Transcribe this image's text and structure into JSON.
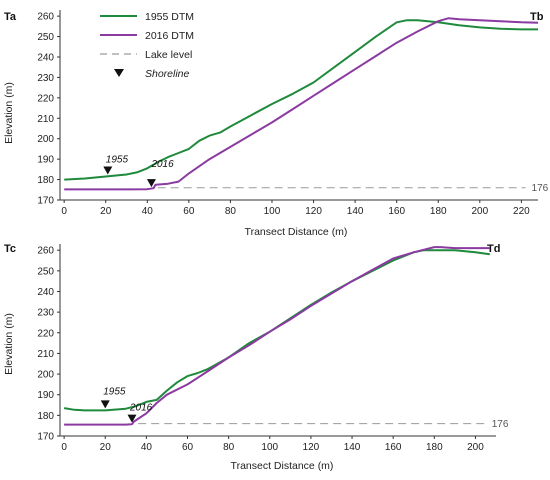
{
  "legend": {
    "items": [
      {
        "label": "1955 DTM",
        "kind": "line",
        "color": "#1f8a3c"
      },
      {
        "label": "2016 DTM",
        "kind": "line",
        "color": "#8b3aa1"
      },
      {
        "label": "Lake level",
        "kind": "dash",
        "color": "#9a9a9a"
      },
      {
        "label": "Shoreline",
        "kind": "marker",
        "color": "#111111"
      }
    ]
  },
  "chart_data": [
    {
      "type": "line",
      "corner_left": "Ta",
      "corner_right": "Tb",
      "xlabel": "Transect Distance (m)",
      "ylabel": "Elevation (m)",
      "xlim": [
        -2,
        228
      ],
      "ylim": [
        170,
        263
      ],
      "xticks": [
        0,
        20,
        40,
        60,
        80,
        100,
        120,
        140,
        160,
        180,
        200,
        220
      ],
      "yticks": [
        170,
        180,
        190,
        200,
        210,
        220,
        230,
        240,
        250,
        260
      ],
      "grid": false,
      "lake_level": {
        "value": 176,
        "label": "176",
        "x_from": 45,
        "x_to": 222
      },
      "series": [
        {
          "name": "1955 DTM",
          "color": "#1f8a3c",
          "x": [
            0,
            10,
            20,
            30,
            35,
            40,
            45,
            50,
            55,
            60,
            65,
            70,
            75,
            80,
            90,
            100,
            110,
            120,
            130,
            140,
            150,
            160,
            165,
            170,
            175,
            180,
            190,
            200,
            210,
            220,
            228
          ],
          "y": [
            180,
            180.5,
            181.5,
            182.5,
            183.5,
            185.5,
            188.5,
            191,
            193,
            195,
            199,
            201.5,
            203,
            206,
            211.5,
            217,
            222,
            227.5,
            235,
            242.5,
            250,
            257,
            258,
            258,
            257.5,
            257,
            255.5,
            254.5,
            253.8,
            253.5,
            253.5
          ]
        },
        {
          "name": "2016 DTM",
          "color": "#8b3aa1",
          "x": [
            0,
            10,
            20,
            30,
            40,
            43,
            44,
            50,
            55,
            60,
            70,
            80,
            90,
            100,
            110,
            120,
            130,
            140,
            150,
            160,
            170,
            180,
            185,
            190,
            200,
            210,
            220,
            228
          ],
          "y": [
            175.2,
            175.2,
            175.2,
            175.2,
            175.3,
            175.8,
            177.5,
            178,
            179,
            183,
            190,
            196,
            202,
            208,
            214.5,
            221,
            227.5,
            234,
            240.5,
            247,
            252.5,
            257.5,
            259,
            258.5,
            258,
            257.5,
            257,
            256.8
          ]
        }
      ],
      "shorelines": [
        {
          "label": "1955",
          "x": 21,
          "y": 181.5,
          "series": "1955 DTM"
        },
        {
          "label": "2016",
          "x": 42,
          "y": 175.3,
          "series": "2016 DTM"
        }
      ]
    },
    {
      "type": "line",
      "corner_left": "Tc",
      "corner_right": "Td",
      "xlabel": "Transect Distance (m)",
      "ylabel": "Elevation (m)",
      "xlim": [
        -2,
        210
      ],
      "ylim": [
        170,
        263
      ],
      "xticks": [
        0,
        20,
        40,
        60,
        80,
        100,
        120,
        140,
        160,
        180,
        200
      ],
      "yticks": [
        170,
        180,
        190,
        200,
        210,
        220,
        230,
        240,
        250,
        260
      ],
      "grid": false,
      "lake_level": {
        "value": 176,
        "label": "176",
        "x_from": 36,
        "x_to": 205
      },
      "series": [
        {
          "name": "1955 DTM",
          "color": "#1f8a3c",
          "x": [
            0,
            5,
            10,
            20,
            30,
            35,
            40,
            45,
            50,
            55,
            60,
            65,
            70,
            80,
            90,
            100,
            110,
            120,
            130,
            140,
            150,
            160,
            170,
            175,
            180,
            190,
            200,
            207
          ],
          "y": [
            183.5,
            182.7,
            182.4,
            182.4,
            183.2,
            184.5,
            186.5,
            187.5,
            192,
            196,
            199,
            200.5,
            202.5,
            208,
            215,
            220.5,
            227,
            233.5,
            239.5,
            245,
            250,
            255,
            259,
            260,
            260,
            260,
            259,
            258
          ]
        },
        {
          "name": "2016 DTM",
          "color": "#8b3aa1",
          "x": [
            0,
            10,
            20,
            30,
            33,
            34,
            40,
            45,
            50,
            60,
            70,
            80,
            90,
            100,
            110,
            120,
            130,
            140,
            150,
            160,
            170,
            180,
            183,
            190,
            200,
            207
          ],
          "y": [
            175.5,
            175.5,
            175.5,
            175.5,
            175.7,
            177,
            181,
            186,
            190,
            195,
            201.5,
            208,
            214,
            220.5,
            226.5,
            233,
            239,
            245,
            250.5,
            256,
            259,
            261.5,
            261.5,
            261,
            261,
            261
          ]
        }
      ],
      "shorelines": [
        {
          "label": "1955",
          "x": 20,
          "y": 182.4,
          "series": "1955 DTM"
        },
        {
          "label": "2016",
          "x": 33,
          "y": 175.5,
          "series": "2016 DTM"
        }
      ]
    }
  ]
}
